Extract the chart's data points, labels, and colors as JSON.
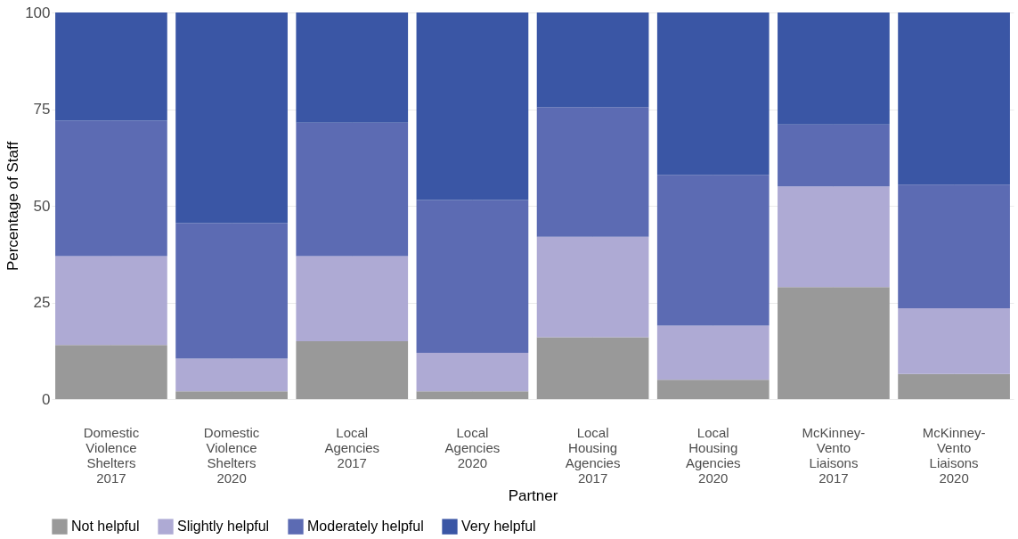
{
  "chart_data": {
    "type": "bar",
    "stacked": true,
    "xlabel": "Partner",
    "ylabel": "Percentage of Staff",
    "categories": [
      "Domestic\nViolence\nShelters\n2017",
      "Domestic\nViolence\nShelters\n2020",
      "Local\nAgencies\n2017",
      "Local\nAgencies\n2020",
      "Local\nHousing\nAgencies\n2017",
      "Local\nHousing\nAgencies\n2020",
      "McKinney-\nVento\nLiaisons\n2017",
      "McKinney-\nVento\nLiaisons\n2020"
    ],
    "series": [
      {
        "name": "Not helpful",
        "color": "#999999",
        "values": [
          14,
          2,
          15,
          2,
          16,
          5,
          29,
          6.5
        ]
      },
      {
        "name": "Slightly helpful",
        "color": "#aeaad4",
        "values": [
          23,
          8.5,
          22,
          10,
          26,
          14,
          26,
          17
        ]
      },
      {
        "name": "Moderately helpful",
        "color": "#5c6bb3",
        "values": [
          35,
          35,
          34.5,
          39.5,
          33.5,
          39,
          16,
          32
        ]
      },
      {
        "name": "Very helpful",
        "color": "#3a56a5",
        "values": [
          28,
          54.5,
          28.5,
          48.5,
          24.5,
          42,
          29,
          44.5
        ]
      }
    ],
    "ylim": [
      0,
      100
    ],
    "yticks": [
      0,
      25,
      50,
      75,
      100
    ],
    "grid": true,
    "legend": "bottom"
  }
}
